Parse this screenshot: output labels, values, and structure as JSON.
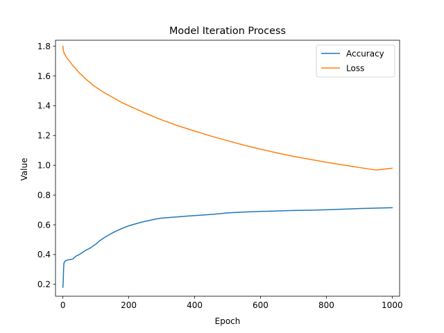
{
  "chart_data": {
    "type": "line",
    "title": "Model Iteration Process",
    "xlabel": "Epoch",
    "ylabel": "Value",
    "xlim": [
      -22.5,
      1022.5
    ],
    "ylim": [
      0.12,
      1.84
    ],
    "xticks": [
      0,
      200,
      400,
      600,
      800,
      1000
    ],
    "yticks": [
      0.2,
      0.4,
      0.6,
      0.8,
      1.0,
      1.2,
      1.4,
      1.6,
      1.8
    ],
    "ytick_labels": [
      "0.2",
      "0.4",
      "0.6",
      "0.8",
      "1.0",
      "1.2",
      "1.4",
      "1.6",
      "1.8"
    ],
    "grid": false,
    "legend_position": "top-right",
    "series": [
      {
        "name": "Accuracy",
        "color": "#1f77b4",
        "x": [
          0,
          1,
          2,
          3,
          5,
          8,
          12,
          20,
          30,
          40,
          50,
          60,
          70,
          80,
          90,
          100,
          110,
          120,
          130,
          140,
          150,
          160,
          170,
          180,
          190,
          200,
          220,
          240,
          260,
          280,
          300,
          340,
          380,
          420,
          460,
          500,
          550,
          600,
          650,
          700,
          750,
          800,
          850,
          900,
          950,
          1000
        ],
        "y": [
          0.18,
          0.22,
          0.3,
          0.34,
          0.352,
          0.358,
          0.362,
          0.366,
          0.37,
          0.39,
          0.4,
          0.415,
          0.43,
          0.44,
          0.455,
          0.47,
          0.49,
          0.505,
          0.52,
          0.532,
          0.545,
          0.556,
          0.566,
          0.576,
          0.585,
          0.593,
          0.606,
          0.618,
          0.628,
          0.638,
          0.645,
          0.652,
          0.659,
          0.665,
          0.671,
          0.68,
          0.686,
          0.69,
          0.693,
          0.696,
          0.698,
          0.701,
          0.705,
          0.709,
          0.712,
          0.715
        ]
      },
      {
        "name": "Loss",
        "color": "#ff7f0e",
        "x": [
          0,
          1,
          2,
          4,
          7,
          10,
          20,
          30,
          40,
          50,
          60,
          70,
          80,
          90,
          100,
          120,
          140,
          160,
          180,
          200,
          250,
          300,
          350,
          400,
          450,
          500,
          550,
          600,
          650,
          700,
          750,
          800,
          850,
          900,
          950,
          1000
        ],
        "y": [
          1.8,
          1.78,
          1.765,
          1.752,
          1.74,
          1.728,
          1.7,
          1.67,
          1.645,
          1.62,
          1.6,
          1.578,
          1.56,
          1.54,
          1.525,
          1.495,
          1.47,
          1.445,
          1.42,
          1.4,
          1.35,
          1.305,
          1.265,
          1.23,
          1.196,
          1.165,
          1.135,
          1.108,
          1.083,
          1.06,
          1.04,
          1.02,
          1.002,
          0.985,
          0.968,
          0.98
        ]
      }
    ]
  }
}
